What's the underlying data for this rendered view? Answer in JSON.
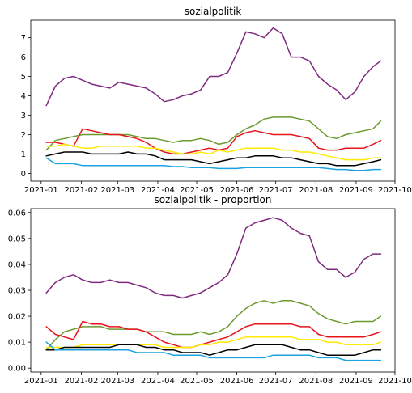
{
  "chart_data": [
    {
      "type": "line",
      "title": "sozialpolitik",
      "xlabel": "",
      "ylabel": "",
      "x_ticks": [
        "2021-01",
        "2021-02",
        "2021-03",
        "2021-04",
        "2021-05",
        "2021-06",
        "2021-07",
        "2021-08",
        "2021-09",
        "2021-10"
      ],
      "y_ticks": [
        "0",
        "1",
        "2",
        "3",
        "4",
        "5",
        "6",
        "7"
      ],
      "xlim": [
        "2020-12-24",
        "2021-10-01"
      ],
      "ylim": [
        -0.4,
        7.9
      ],
      "grid": false,
      "x": [
        "2021-01-05",
        "2021-01-12",
        "2021-01-19",
        "2021-01-26",
        "2021-02-02",
        "2021-02-09",
        "2021-02-16",
        "2021-02-23",
        "2021-03-02",
        "2021-03-09",
        "2021-03-16",
        "2021-03-23",
        "2021-03-30",
        "2021-04-06",
        "2021-04-13",
        "2021-04-20",
        "2021-04-27",
        "2021-05-04",
        "2021-05-11",
        "2021-05-18",
        "2021-05-25",
        "2021-06-01",
        "2021-06-08",
        "2021-06-15",
        "2021-06-22",
        "2021-06-29",
        "2021-07-06",
        "2021-07-13",
        "2021-07-20",
        "2021-07-27",
        "2021-08-03",
        "2021-08-10",
        "2021-08-17",
        "2021-08-24",
        "2021-08-31",
        "2021-09-07",
        "2021-09-14",
        "2021-09-20"
      ],
      "series": [
        {
          "color": "#7f2a7f",
          "values": [
            3.5,
            4.5,
            4.9,
            5.0,
            4.8,
            4.6,
            4.5,
            4.4,
            4.7,
            4.6,
            4.5,
            4.4,
            4.1,
            3.7,
            3.8,
            4.0,
            4.1,
            4.3,
            5.0,
            5.0,
            5.2,
            6.2,
            7.3,
            7.2,
            7.0,
            7.5,
            7.2,
            6.0,
            6.0,
            5.8,
            5.0,
            4.6,
            4.3,
            3.8,
            4.2,
            5.0,
            5.5,
            5.8
          ]
        },
        {
          "color": "#6b9a2e",
          "values": [
            1.2,
            1.7,
            1.8,
            1.9,
            2.0,
            2.0,
            2.0,
            2.0,
            2.0,
            2.0,
            1.9,
            1.8,
            1.8,
            1.7,
            1.6,
            1.7,
            1.7,
            1.8,
            1.7,
            1.5,
            1.6,
            2.0,
            2.3,
            2.5,
            2.8,
            2.9,
            2.9,
            2.9,
            2.8,
            2.7,
            2.3,
            1.9,
            1.8,
            2.0,
            2.1,
            2.2,
            2.3,
            2.7
          ]
        },
        {
          "color": "#e8141c",
          "values": [
            1.6,
            1.6,
            1.5,
            1.4,
            2.3,
            2.2,
            2.1,
            2.0,
            2.0,
            1.9,
            1.8,
            1.6,
            1.3,
            1.1,
            1.0,
            1.0,
            1.1,
            1.2,
            1.3,
            1.2,
            1.3,
            1.9,
            2.1,
            2.2,
            2.1,
            2.0,
            2.0,
            2.0,
            1.9,
            1.8,
            1.3,
            1.2,
            1.2,
            1.3,
            1.3,
            1.3,
            1.5,
            1.7
          ]
        },
        {
          "color": "#ffea00",
          "values": [
            1.4,
            1.4,
            1.5,
            1.4,
            1.3,
            1.3,
            1.4,
            1.4,
            1.4,
            1.4,
            1.4,
            1.3,
            1.3,
            1.2,
            1.1,
            1.0,
            1.0,
            1.1,
            1.0,
            1.2,
            1.1,
            1.2,
            1.3,
            1.3,
            1.3,
            1.3,
            1.2,
            1.2,
            1.1,
            1.1,
            1.0,
            0.9,
            0.8,
            0.7,
            0.7,
            0.7,
            0.8,
            0.8
          ]
        },
        {
          "color": "#000000",
          "values": [
            0.9,
            1.0,
            1.1,
            1.1,
            1.1,
            1.0,
            1.0,
            1.0,
            1.0,
            1.1,
            1.0,
            1.0,
            0.9,
            0.7,
            0.7,
            0.7,
            0.7,
            0.6,
            0.5,
            0.6,
            0.7,
            0.8,
            0.8,
            0.9,
            0.9,
            0.9,
            0.8,
            0.8,
            0.7,
            0.6,
            0.5,
            0.5,
            0.4,
            0.4,
            0.4,
            0.5,
            0.6,
            0.7
          ]
        },
        {
          "color": "#1aa3e0",
          "values": [
            0.8,
            0.5,
            0.5,
            0.5,
            0.4,
            0.4,
            0.4,
            0.4,
            0.4,
            0.4,
            0.4,
            0.4,
            0.4,
            0.4,
            0.35,
            0.35,
            0.3,
            0.3,
            0.3,
            0.25,
            0.25,
            0.25,
            0.3,
            0.3,
            0.3,
            0.3,
            0.3,
            0.3,
            0.3,
            0.3,
            0.3,
            0.25,
            0.2,
            0.2,
            0.15,
            0.15,
            0.2,
            0.2
          ]
        }
      ]
    },
    {
      "type": "line",
      "title": "sozialpolitik - proportion",
      "xlabel": "",
      "ylabel": "",
      "x_ticks": [
        "2021-01",
        "2021-02",
        "2021-03",
        "2021-04",
        "2021-05",
        "2021-06",
        "2021-07",
        "2021-08",
        "2021-09",
        "2021-10"
      ],
      "y_ticks": [
        "0.00",
        "0.01",
        "0.02",
        "0.03",
        "0.04",
        "0.05",
        "0.06"
      ],
      "xlim": [
        "2020-12-24",
        "2021-10-01"
      ],
      "ylim": [
        -0.0015,
        0.0615
      ],
      "grid": false,
      "x": [
        "2021-01-05",
        "2021-01-12",
        "2021-01-19",
        "2021-01-26",
        "2021-02-02",
        "2021-02-09",
        "2021-02-16",
        "2021-02-23",
        "2021-03-02",
        "2021-03-09",
        "2021-03-16",
        "2021-03-23",
        "2021-03-30",
        "2021-04-06",
        "2021-04-13",
        "2021-04-20",
        "2021-04-27",
        "2021-05-04",
        "2021-05-11",
        "2021-05-18",
        "2021-05-25",
        "2021-06-01",
        "2021-06-08",
        "2021-06-15",
        "2021-06-22",
        "2021-06-29",
        "2021-07-06",
        "2021-07-13",
        "2021-07-20",
        "2021-07-27",
        "2021-08-03",
        "2021-08-10",
        "2021-08-17",
        "2021-08-24",
        "2021-08-31",
        "2021-09-07",
        "2021-09-14",
        "2021-09-20"
      ],
      "series": [
        {
          "color": "#7f2a7f",
          "values": [
            0.029,
            0.033,
            0.035,
            0.036,
            0.034,
            0.033,
            0.033,
            0.034,
            0.033,
            0.033,
            0.032,
            0.031,
            0.029,
            0.028,
            0.028,
            0.027,
            0.028,
            0.029,
            0.031,
            0.033,
            0.036,
            0.044,
            0.054,
            0.056,
            0.057,
            0.058,
            0.057,
            0.054,
            0.052,
            0.051,
            0.041,
            0.038,
            0.038,
            0.035,
            0.037,
            0.042,
            0.044,
            0.044
          ]
        },
        {
          "color": "#6b9a2e",
          "values": [
            0.007,
            0.011,
            0.014,
            0.015,
            0.016,
            0.016,
            0.016,
            0.015,
            0.015,
            0.015,
            0.015,
            0.014,
            0.014,
            0.014,
            0.013,
            0.013,
            0.013,
            0.014,
            0.013,
            0.014,
            0.016,
            0.02,
            0.023,
            0.025,
            0.026,
            0.025,
            0.026,
            0.026,
            0.025,
            0.024,
            0.021,
            0.019,
            0.018,
            0.017,
            0.018,
            0.018,
            0.018,
            0.02
          ]
        },
        {
          "color": "#e8141c",
          "values": [
            0.016,
            0.013,
            0.012,
            0.011,
            0.018,
            0.017,
            0.017,
            0.016,
            0.016,
            0.015,
            0.015,
            0.014,
            0.012,
            0.01,
            0.009,
            0.008,
            0.008,
            0.009,
            0.01,
            0.011,
            0.012,
            0.014,
            0.016,
            0.017,
            0.017,
            0.017,
            0.017,
            0.017,
            0.016,
            0.016,
            0.013,
            0.012,
            0.012,
            0.012,
            0.012,
            0.012,
            0.013,
            0.014
          ]
        },
        {
          "color": "#ffea00",
          "values": [
            0.008,
            0.008,
            0.008,
            0.008,
            0.009,
            0.009,
            0.009,
            0.009,
            0.009,
            0.009,
            0.009,
            0.009,
            0.009,
            0.008,
            0.008,
            0.008,
            0.008,
            0.009,
            0.009,
            0.01,
            0.01,
            0.011,
            0.012,
            0.012,
            0.012,
            0.012,
            0.012,
            0.012,
            0.011,
            0.011,
            0.011,
            0.01,
            0.01,
            0.009,
            0.009,
            0.009,
            0.009,
            0.01
          ]
        },
        {
          "color": "#000000",
          "values": [
            0.007,
            0.007,
            0.008,
            0.008,
            0.008,
            0.008,
            0.008,
            0.008,
            0.009,
            0.009,
            0.009,
            0.008,
            0.008,
            0.007,
            0.007,
            0.006,
            0.006,
            0.006,
            0.005,
            0.006,
            0.007,
            0.007,
            0.008,
            0.009,
            0.009,
            0.009,
            0.009,
            0.008,
            0.007,
            0.007,
            0.006,
            0.005,
            0.005,
            0.005,
            0.005,
            0.006,
            0.007,
            0.007
          ]
        },
        {
          "color": "#1aa3e0",
          "values": [
            0.01,
            0.007,
            0.007,
            0.007,
            0.007,
            0.007,
            0.007,
            0.007,
            0.007,
            0.007,
            0.006,
            0.006,
            0.006,
            0.006,
            0.005,
            0.005,
            0.005,
            0.005,
            0.004,
            0.004,
            0.004,
            0.004,
            0.004,
            0.004,
            0.004,
            0.005,
            0.005,
            0.005,
            0.005,
            0.005,
            0.004,
            0.004,
            0.004,
            0.003,
            0.003,
            0.003,
            0.003,
            0.003
          ]
        }
      ]
    }
  ]
}
